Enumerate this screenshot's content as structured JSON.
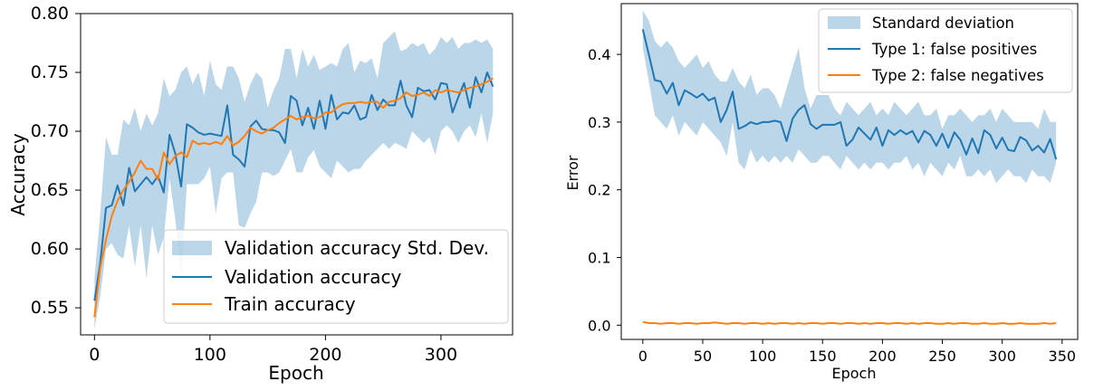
{
  "colors": {
    "blue": "#1f77b4",
    "orange": "#ff7f0e",
    "band": "#1f77b4",
    "band_opacity": 0.3
  },
  "chart_data": [
    {
      "type": "line",
      "xlabel": "Epoch",
      "ylabel": "Accuracy",
      "xlim": [
        -12,
        362
      ],
      "ylim": [
        0.527,
        0.8
      ],
      "xticks": [
        0,
        100,
        200,
        300
      ],
      "xtick_labels": [
        "0",
        "100",
        "200",
        "300"
      ],
      "yticks": [
        0.55,
        0.6,
        0.65,
        0.7,
        0.75,
        0.8
      ],
      "ytick_labels": [
        "0.55",
        "0.60",
        "0.65",
        "0.70",
        "0.75",
        "0.80"
      ],
      "legend_position": "lower-right",
      "grid": false,
      "x": [
        0,
        5,
        10,
        15,
        20,
        25,
        30,
        35,
        40,
        45,
        50,
        55,
        60,
        65,
        70,
        75,
        80,
        85,
        90,
        95,
        100,
        105,
        110,
        115,
        120,
        125,
        130,
        135,
        140,
        145,
        150,
        155,
        160,
        165,
        170,
        175,
        180,
        185,
        190,
        195,
        200,
        205,
        210,
        215,
        220,
        225,
        230,
        235,
        240,
        245,
        250,
        255,
        260,
        265,
        270,
        275,
        280,
        285,
        290,
        295,
        300,
        305,
        310,
        315,
        320,
        325,
        330,
        335,
        340,
        345
      ],
      "series": [
        {
          "name": "Validation accuracy Std. Dev.",
          "kind": "band",
          "color": "#1f77b4",
          "lower": [
            0.532,
            0.56,
            0.6,
            0.605,
            0.595,
            0.592,
            0.62,
            0.585,
            0.62,
            0.575,
            0.62,
            0.595,
            0.61,
            0.66,
            0.625,
            0.575,
            0.655,
            0.655,
            0.655,
            0.66,
            0.67,
            0.63,
            0.66,
            0.665,
            0.665,
            0.62,
            0.618,
            0.63,
            0.64,
            0.665,
            0.665,
            0.662,
            0.665,
            0.675,
            0.685,
            0.665,
            0.665,
            0.678,
            0.684,
            0.67,
            0.665,
            0.66,
            0.675,
            0.67,
            0.665,
            0.668,
            0.668,
            0.675,
            0.68,
            0.685,
            0.69,
            0.685,
            0.69,
            0.688,
            0.685,
            0.7,
            0.695,
            0.69,
            0.695,
            0.68,
            0.7,
            0.705,
            0.7,
            0.69,
            0.7,
            0.705,
            0.695,
            0.715,
            0.69,
            0.715
          ],
          "upper": [
            0.575,
            0.63,
            0.695,
            0.68,
            0.68,
            0.71,
            0.705,
            0.72,
            0.7,
            0.715,
            0.705,
            0.715,
            0.745,
            0.73,
            0.735,
            0.75,
            0.755,
            0.74,
            0.75,
            0.73,
            0.76,
            0.74,
            0.735,
            0.755,
            0.755,
            0.745,
            0.725,
            0.74,
            0.75,
            0.745,
            0.72,
            0.735,
            0.745,
            0.77,
            0.77,
            0.745,
            0.77,
            0.755,
            0.765,
            0.752,
            0.755,
            0.758,
            0.755,
            0.77,
            0.775,
            0.75,
            0.76,
            0.758,
            0.762,
            0.745,
            0.775,
            0.78,
            0.785,
            0.768,
            0.77,
            0.775,
            0.772,
            0.775,
            0.765,
            0.77,
            0.78,
            0.775,
            0.78,
            0.77,
            0.775,
            0.775,
            0.778,
            0.775,
            0.778,
            0.77
          ]
        },
        {
          "name": "Validation accuracy",
          "kind": "line",
          "color": "#1f77b4",
          "values": [
            0.556,
            0.588,
            0.635,
            0.637,
            0.654,
            0.637,
            0.669,
            0.649,
            0.655,
            0.661,
            0.655,
            0.662,
            0.648,
            0.697,
            0.681,
            0.653,
            0.706,
            0.703,
            0.699,
            0.697,
            0.698,
            0.697,
            0.696,
            0.722,
            0.68,
            0.676,
            0.67,
            0.704,
            0.709,
            0.702,
            0.701,
            0.701,
            0.699,
            0.69,
            0.73,
            0.726,
            0.705,
            0.72,
            0.702,
            0.726,
            0.702,
            0.731,
            0.71,
            0.716,
            0.715,
            0.722,
            0.71,
            0.712,
            0.731,
            0.718,
            0.727,
            0.722,
            0.722,
            0.743,
            0.722,
            0.712,
            0.737,
            0.734,
            0.735,
            0.727,
            0.741,
            0.74,
            0.716,
            0.729,
            0.741,
            0.72,
            0.746,
            0.733,
            0.75,
            0.738
          ]
        },
        {
          "name": "Train accuracy",
          "kind": "line",
          "color": "#ff7f0e",
          "values": [
            0.542,
            0.584,
            0.608,
            0.628,
            0.641,
            0.65,
            0.657,
            0.665,
            0.675,
            0.668,
            0.668,
            0.659,
            0.682,
            0.672,
            0.679,
            0.682,
            0.678,
            0.692,
            0.689,
            0.69,
            0.689,
            0.691,
            0.689,
            0.696,
            0.688,
            0.691,
            0.696,
            0.703,
            0.7,
            0.698,
            0.701,
            0.703,
            0.707,
            0.71,
            0.713,
            0.71,
            0.712,
            0.713,
            0.711,
            0.712,
            0.716,
            0.716,
            0.72,
            0.723,
            0.724,
            0.724,
            0.725,
            0.724,
            0.725,
            0.725,
            0.72,
            0.725,
            0.726,
            0.728,
            0.733,
            0.73,
            0.731,
            0.733,
            0.73,
            0.735,
            0.733,
            0.735,
            0.734,
            0.733,
            0.735,
            0.737,
            0.738,
            0.74,
            0.742,
            0.745
          ]
        }
      ]
    },
    {
      "type": "line",
      "xlabel": "Epoch",
      "ylabel": "Error",
      "xlim": [
        -18,
        363
      ],
      "ylim": [
        -0.021,
        0.475
      ],
      "xticks": [
        0,
        50,
        100,
        150,
        200,
        250,
        300,
        350
      ],
      "xtick_labels": [
        "0",
        "50",
        "100",
        "150",
        "200",
        "250",
        "300",
        "350"
      ],
      "yticks": [
        0.0,
        0.1,
        0.2,
        0.3,
        0.4
      ],
      "ytick_labels": [
        "0.0",
        "0.1",
        "0.2",
        "0.3",
        "0.4"
      ],
      "legend_position": "upper-right",
      "grid": false,
      "x": [
        0,
        5,
        10,
        15,
        20,
        25,
        30,
        35,
        40,
        45,
        50,
        55,
        60,
        65,
        70,
        75,
        80,
        85,
        90,
        95,
        100,
        105,
        110,
        115,
        120,
        125,
        130,
        135,
        140,
        145,
        150,
        155,
        160,
        165,
        170,
        175,
        180,
        185,
        190,
        195,
        200,
        205,
        210,
        215,
        220,
        225,
        230,
        235,
        240,
        245,
        250,
        255,
        260,
        265,
        270,
        275,
        280,
        285,
        290,
        295,
        300,
        305,
        310,
        315,
        320,
        325,
        330,
        335,
        340,
        345
      ],
      "series": [
        {
          "name": "Standard deviation",
          "kind": "band",
          "color": "#1f77b4",
          "lower": [
            0.41,
            0.36,
            0.31,
            0.3,
            0.29,
            0.31,
            0.28,
            0.3,
            0.29,
            0.28,
            0.3,
            0.29,
            0.28,
            0.27,
            0.25,
            0.3,
            0.24,
            0.23,
            0.26,
            0.24,
            0.25,
            0.24,
            0.25,
            0.24,
            0.25,
            0.24,
            0.26,
            0.25,
            0.24,
            0.24,
            0.25,
            0.25,
            0.24,
            0.23,
            0.25,
            0.24,
            0.23,
            0.24,
            0.23,
            0.24,
            0.24,
            0.23,
            0.24,
            0.24,
            0.25,
            0.23,
            0.24,
            0.22,
            0.24,
            0.23,
            0.22,
            0.24,
            0.23,
            0.25,
            0.22,
            0.22,
            0.23,
            0.22,
            0.23,
            0.21,
            0.22,
            0.23,
            0.22,
            0.22,
            0.21,
            0.23,
            0.22,
            0.22,
            0.21,
            0.24
          ],
          "upper": [
            0.465,
            0.45,
            0.42,
            0.41,
            0.42,
            0.41,
            0.39,
            0.38,
            0.39,
            0.4,
            0.38,
            0.39,
            0.37,
            0.36,
            0.36,
            0.38,
            0.36,
            0.35,
            0.37,
            0.34,
            0.35,
            0.35,
            0.34,
            0.32,
            0.35,
            0.38,
            0.41,
            0.35,
            0.32,
            0.34,
            0.34,
            0.34,
            0.32,
            0.31,
            0.33,
            0.32,
            0.31,
            0.32,
            0.33,
            0.31,
            0.32,
            0.31,
            0.33,
            0.32,
            0.31,
            0.32,
            0.33,
            0.31,
            0.31,
            0.32,
            0.29,
            0.31,
            0.31,
            0.32,
            0.31,
            0.3,
            0.31,
            0.31,
            0.32,
            0.3,
            0.32,
            0.31,
            0.3,
            0.3,
            0.3,
            0.3,
            0.29,
            0.32,
            0.3,
            0.3
          ]
        },
        {
          "name": "Type 1: false positives",
          "kind": "line",
          "color": "#1f77b4",
          "values": [
            0.437,
            0.4,
            0.362,
            0.36,
            0.342,
            0.358,
            0.325,
            0.347,
            0.342,
            0.336,
            0.342,
            0.332,
            0.336,
            0.3,
            0.318,
            0.345,
            0.29,
            0.294,
            0.3,
            0.297,
            0.3,
            0.3,
            0.302,
            0.3,
            0.272,
            0.305,
            0.318,
            0.325,
            0.297,
            0.29,
            0.296,
            0.296,
            0.296,
            0.3,
            0.265,
            0.274,
            0.292,
            0.283,
            0.274,
            0.292,
            0.265,
            0.288,
            0.281,
            0.288,
            0.282,
            0.287,
            0.27,
            0.287,
            0.281,
            0.265,
            0.283,
            0.262,
            0.285,
            0.274,
            0.252,
            0.276,
            0.254,
            0.288,
            0.281,
            0.261,
            0.277,
            0.259,
            0.257,
            0.278,
            0.273,
            0.258,
            0.265,
            0.255,
            0.275,
            0.245
          ]
        },
        {
          "name": "Type 2: false negatives",
          "kind": "line",
          "color": "#ff7f0e",
          "values": [
            0.005,
            0.003,
            0.003,
            0.002,
            0.003,
            0.003,
            0.002,
            0.003,
            0.003,
            0.002,
            0.003,
            0.003,
            0.004,
            0.003,
            0.002,
            0.003,
            0.003,
            0.002,
            0.003,
            0.003,
            0.002,
            0.003,
            0.002,
            0.003,
            0.003,
            0.002,
            0.003,
            0.002,
            0.003,
            0.003,
            0.002,
            0.003,
            0.003,
            0.002,
            0.003,
            0.003,
            0.002,
            0.003,
            0.002,
            0.003,
            0.003,
            0.002,
            0.003,
            0.003,
            0.002,
            0.003,
            0.002,
            0.003,
            0.003,
            0.002,
            0.002,
            0.003,
            0.002,
            0.003,
            0.003,
            0.002,
            0.002,
            0.003,
            0.002,
            0.002,
            0.003,
            0.002,
            0.002,
            0.003,
            0.002,
            0.002,
            0.002,
            0.003,
            0.002,
            0.003
          ]
        }
      ]
    }
  ]
}
